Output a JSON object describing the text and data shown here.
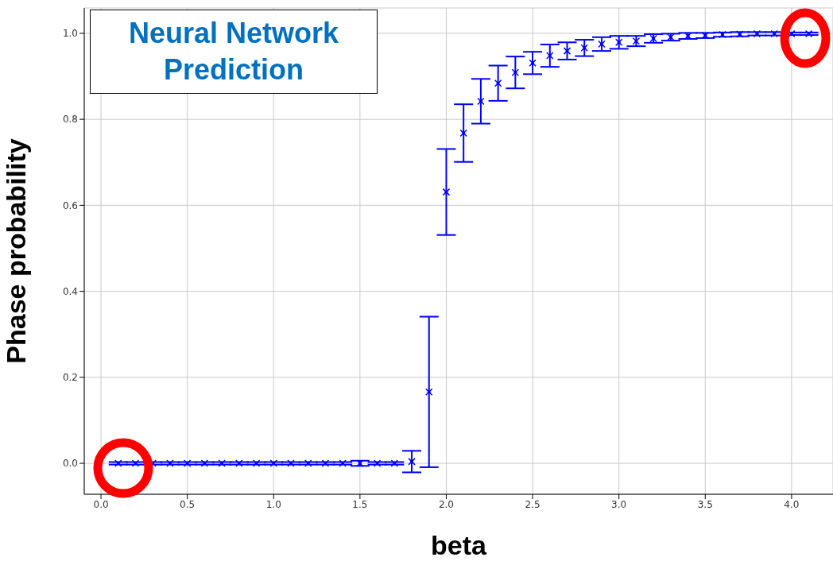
{
  "chart_data": {
    "type": "scatter",
    "xlabel": "beta",
    "ylabel": "Phase probability",
    "annotations": [
      "Neural Network Prediction"
    ],
    "x": [
      0.1,
      0.2,
      0.3,
      0.4,
      0.5,
      0.6,
      0.7,
      0.8,
      0.9,
      1.0,
      1.1,
      1.2,
      1.3,
      1.4,
      1.5,
      1.6,
      1.7,
      1.8,
      1.9,
      2.0,
      2.1,
      2.2,
      2.3,
      2.4,
      2.5,
      2.6,
      2.7,
      2.8,
      2.9,
      3.0,
      3.1,
      3.2,
      3.3,
      3.4,
      3.5,
      3.6,
      3.7,
      3.8,
      3.9,
      4.0,
      4.1
    ],
    "series": [
      {
        "color": "#0000ff",
        "values": [
          0,
          0,
          0,
          0,
          0,
          0,
          0,
          0,
          0,
          0,
          0,
          0,
          0,
          0,
          0,
          0,
          0,
          0.004,
          0.166,
          0.631,
          0.768,
          0.842,
          0.884,
          0.909,
          0.931,
          0.948,
          0.959,
          0.966,
          0.975,
          0.979,
          0.982,
          0.988,
          0.991,
          0.994,
          0.995,
          0.997,
          0.998,
          0.999,
          0.999,
          0.999,
          0.999
        ],
        "errors": [
          0.003,
          0.003,
          0.003,
          0.003,
          0.003,
          0.003,
          0.003,
          0.003,
          0.003,
          0.003,
          0.003,
          0.003,
          0.003,
          0.003,
          0.006,
          0.003,
          0.003,
          0.025,
          0.175,
          0.1,
          0.067,
          0.052,
          0.041,
          0.037,
          0.026,
          0.026,
          0.02,
          0.019,
          0.016,
          0.015,
          0.012,
          0.01,
          0.008,
          0.007,
          0.006,
          0.005,
          0.005,
          0.004,
          0.004,
          0.003,
          0.003
        ]
      }
    ],
    "marker": "cross",
    "grid": true,
    "xlim": [
      -0.097,
      4.24
    ],
    "xticks": [
      {
        "value": 0,
        "label": "0.0"
      },
      {
        "value": 0.5,
        "label": "0.5"
      },
      {
        "value": 1,
        "label": "1.0"
      },
      {
        "value": 1.5,
        "label": "1.5"
      },
      {
        "value": 2,
        "label": "2.0"
      },
      {
        "value": 2.5,
        "label": "2.5"
      },
      {
        "value": 3,
        "label": "3.0"
      },
      {
        "value": 3.5,
        "label": "3.5"
      },
      {
        "value": 4,
        "label": "4.0"
      }
    ],
    "ylim": [
      -0.072,
      1.059
    ],
    "yticks": [
      {
        "value": 0,
        "label": "0.0"
      },
      {
        "value": 0.2,
        "label": "0.2"
      },
      {
        "value": 0.4,
        "label": "0.4"
      },
      {
        "value": 0.6,
        "label": "0.6"
      },
      {
        "value": 0.8,
        "label": "0.8"
      },
      {
        "value": 1,
        "label": "1.0"
      }
    ]
  }
}
